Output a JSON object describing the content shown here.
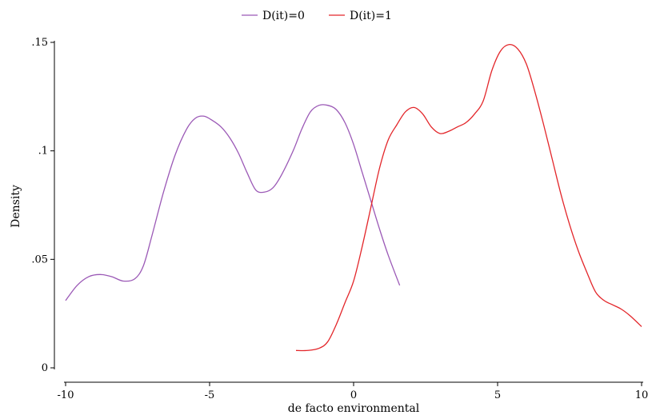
{
  "chart_data": {
    "type": "line",
    "title": "",
    "xlabel": "de facto environmental",
    "ylabel": "Density",
    "xlim": [
      -10,
      10
    ],
    "ylim": [
      0,
      0.15
    ],
    "x_ticks": [
      -10,
      -5,
      0,
      5,
      10
    ],
    "x_tick_labels": [
      "-10",
      "-5",
      "0",
      "5",
      "10"
    ],
    "y_ticks": [
      0,
      0.05,
      0.1,
      0.15
    ],
    "y_tick_labels": [
      "0",
      ".05",
      ".1",
      ".15"
    ],
    "grid": false,
    "legend_position": "top",
    "series": [
      {
        "name": "D(it)=0",
        "color": "#9b59b6",
        "x": [
          -10,
          -9.6,
          -9.2,
          -8.8,
          -8.4,
          -8.0,
          -7.6,
          -7.3,
          -7.0,
          -6.6,
          -6.2,
          -5.8,
          -5.5,
          -5.2,
          -4.9,
          -4.6,
          -4.3,
          -4.0,
          -3.7,
          -3.4,
          -3.1,
          -2.8,
          -2.5,
          -2.1,
          -1.8,
          -1.5,
          -1.2,
          -0.9,
          -0.6,
          -0.3,
          0.0,
          0.3,
          0.6,
          0.9,
          1.2,
          1.6
        ],
        "values": [
          0.031,
          0.038,
          0.042,
          0.043,
          0.042,
          0.04,
          0.041,
          0.047,
          0.061,
          0.081,
          0.098,
          0.11,
          0.115,
          0.116,
          0.114,
          0.111,
          0.106,
          0.099,
          0.09,
          0.082,
          0.081,
          0.083,
          0.089,
          0.1,
          0.11,
          0.118,
          0.121,
          0.121,
          0.119,
          0.113,
          0.103,
          0.09,
          0.077,
          0.064,
          0.052,
          0.038
        ]
      },
      {
        "name": "D(it)=1",
        "color": "#e3262a",
        "x": [
          -2.0,
          -1.6,
          -1.2,
          -0.9,
          -0.6,
          -0.3,
          0.0,
          0.3,
          0.6,
          0.9,
          1.2,
          1.5,
          1.8,
          2.1,
          2.4,
          2.7,
          3.0,
          3.3,
          3.6,
          3.9,
          4.2,
          4.5,
          4.8,
          5.1,
          5.4,
          5.7,
          6.0,
          6.3,
          6.6,
          6.9,
          7.2,
          7.5,
          7.8,
          8.1,
          8.4,
          8.7,
          9.0,
          9.3,
          9.6,
          10.0
        ],
        "values": [
          0.008,
          0.008,
          0.009,
          0.012,
          0.02,
          0.03,
          0.04,
          0.056,
          0.074,
          0.092,
          0.105,
          0.112,
          0.118,
          0.12,
          0.117,
          0.111,
          0.108,
          0.109,
          0.111,
          0.113,
          0.117,
          0.123,
          0.137,
          0.146,
          0.149,
          0.147,
          0.14,
          0.127,
          0.112,
          0.096,
          0.08,
          0.066,
          0.054,
          0.044,
          0.035,
          0.031,
          0.029,
          0.027,
          0.024,
          0.019
        ]
      }
    ]
  }
}
